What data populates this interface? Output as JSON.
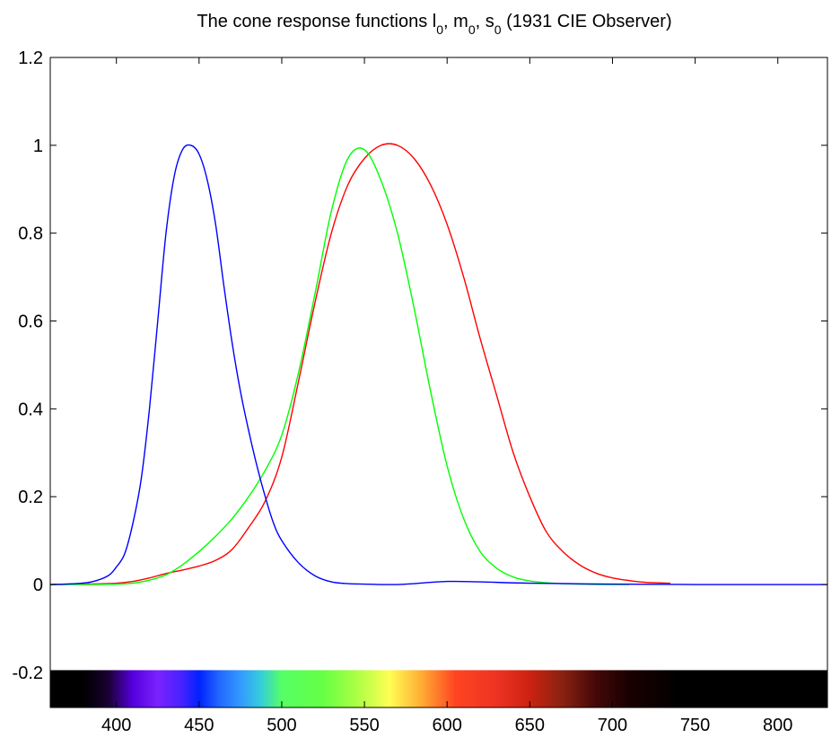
{
  "chart_data": {
    "type": "line",
    "title": {
      "prefix": "The cone response functions ",
      "parts": [
        {
          "base": "l",
          "sub": "0"
        },
        {
          "base": "m",
          "sub": "0"
        },
        {
          "base": "s",
          "sub": "0"
        }
      ],
      "separator": ", ",
      "suffix": " (1931 CIE Observer)"
    },
    "xlabel": "",
    "ylabel": "",
    "xlim": [
      360,
      830
    ],
    "ylim": [
      -0.28,
      1.2
    ],
    "x_ticks": [
      "400",
      "450",
      "500",
      "550",
      "600",
      "650",
      "700",
      "750",
      "800"
    ],
    "y_ticks": [
      "-0.2",
      "0",
      "0.2",
      "0.4",
      "0.6",
      "0.8",
      "1",
      "1.2"
    ],
    "grid": false,
    "legend": "none",
    "series": [
      {
        "color": "#ff0000",
        "x": [
          360,
          380,
          400,
          410,
          420,
          430,
          440,
          450,
          460,
          470,
          480,
          490,
          500,
          510,
          520,
          530,
          540,
          550,
          560,
          570,
          580,
          590,
          600,
          610,
          620,
          630,
          640,
          650,
          660,
          670,
          680,
          690,
          700,
          710,
          720,
          735
        ],
        "y": [
          0.0,
          0.001,
          0.003,
          0.007,
          0.015,
          0.025,
          0.033,
          0.042,
          0.055,
          0.08,
          0.13,
          0.19,
          0.29,
          0.46,
          0.64,
          0.8,
          0.91,
          0.97,
          1.0,
          1.0,
          0.97,
          0.91,
          0.82,
          0.7,
          0.56,
          0.43,
          0.3,
          0.2,
          0.12,
          0.075,
          0.045,
          0.026,
          0.015,
          0.009,
          0.005,
          0.003
        ]
      },
      {
        "color": "#00ff00",
        "x": [
          360,
          380,
          400,
          410,
          420,
          430,
          440,
          450,
          460,
          470,
          480,
          490,
          500,
          510,
          520,
          530,
          540,
          550,
          560,
          570,
          580,
          590,
          600,
          610,
          620,
          630,
          640,
          650,
          660,
          670,
          680,
          690,
          700,
          710
        ],
        "y": [
          0.0,
          0.0,
          0.001,
          0.003,
          0.01,
          0.022,
          0.045,
          0.075,
          0.11,
          0.15,
          0.2,
          0.26,
          0.34,
          0.48,
          0.66,
          0.85,
          0.97,
          0.99,
          0.92,
          0.8,
          0.63,
          0.44,
          0.27,
          0.15,
          0.075,
          0.037,
          0.017,
          0.008,
          0.004,
          0.002,
          0.001,
          0.0,
          0.0,
          0.0
        ]
      },
      {
        "color": "#0000ff",
        "x": [
          360,
          375,
          385,
          395,
          400,
          405,
          410,
          415,
          420,
          425,
          430,
          435,
          440,
          445,
          450,
          455,
          460,
          465,
          470,
          475,
          480,
          485,
          490,
          495,
          500,
          510,
          520,
          530,
          540,
          550,
          560,
          570,
          580,
          600,
          620,
          650,
          700,
          750,
          800,
          830
        ],
        "y": [
          0.0,
          0.002,
          0.006,
          0.02,
          0.04,
          0.07,
          0.14,
          0.24,
          0.4,
          0.6,
          0.8,
          0.93,
          0.99,
          1.0,
          0.98,
          0.92,
          0.82,
          0.68,
          0.55,
          0.44,
          0.35,
          0.27,
          0.2,
          0.14,
          0.1,
          0.05,
          0.02,
          0.006,
          0.002,
          0.001,
          0.0,
          0.0,
          0.002,
          0.007,
          0.006,
          0.003,
          0.001,
          0.0,
          0.0,
          0.0
        ]
      }
    ],
    "color_bar": {
      "y_range": [
        -0.28,
        -0.195
      ],
      "stops": [
        {
          "x": 360,
          "color": "#000000"
        },
        {
          "x": 380,
          "color": "#000000"
        },
        {
          "x": 395,
          "color": "#1a0033"
        },
        {
          "x": 410,
          "color": "#5500dd"
        },
        {
          "x": 425,
          "color": "#7a22ff"
        },
        {
          "x": 440,
          "color": "#4422ff"
        },
        {
          "x": 450,
          "color": "#0022ff"
        },
        {
          "x": 462,
          "color": "#2266ff"
        },
        {
          "x": 475,
          "color": "#3399ff"
        },
        {
          "x": 487,
          "color": "#33ccdd"
        },
        {
          "x": 500,
          "color": "#55ff66"
        },
        {
          "x": 525,
          "color": "#66ff44"
        },
        {
          "x": 545,
          "color": "#aaff44"
        },
        {
          "x": 565,
          "color": "#ffff55"
        },
        {
          "x": 585,
          "color": "#ffaa33"
        },
        {
          "x": 605,
          "color": "#ff4422"
        },
        {
          "x": 630,
          "color": "#ee3322"
        },
        {
          "x": 650,
          "color": "#cc2211"
        },
        {
          "x": 670,
          "color": "#882211"
        },
        {
          "x": 690,
          "color": "#440808"
        },
        {
          "x": 710,
          "color": "#1a0000"
        },
        {
          "x": 740,
          "color": "#000000"
        },
        {
          "x": 830,
          "color": "#000000"
        }
      ]
    }
  }
}
